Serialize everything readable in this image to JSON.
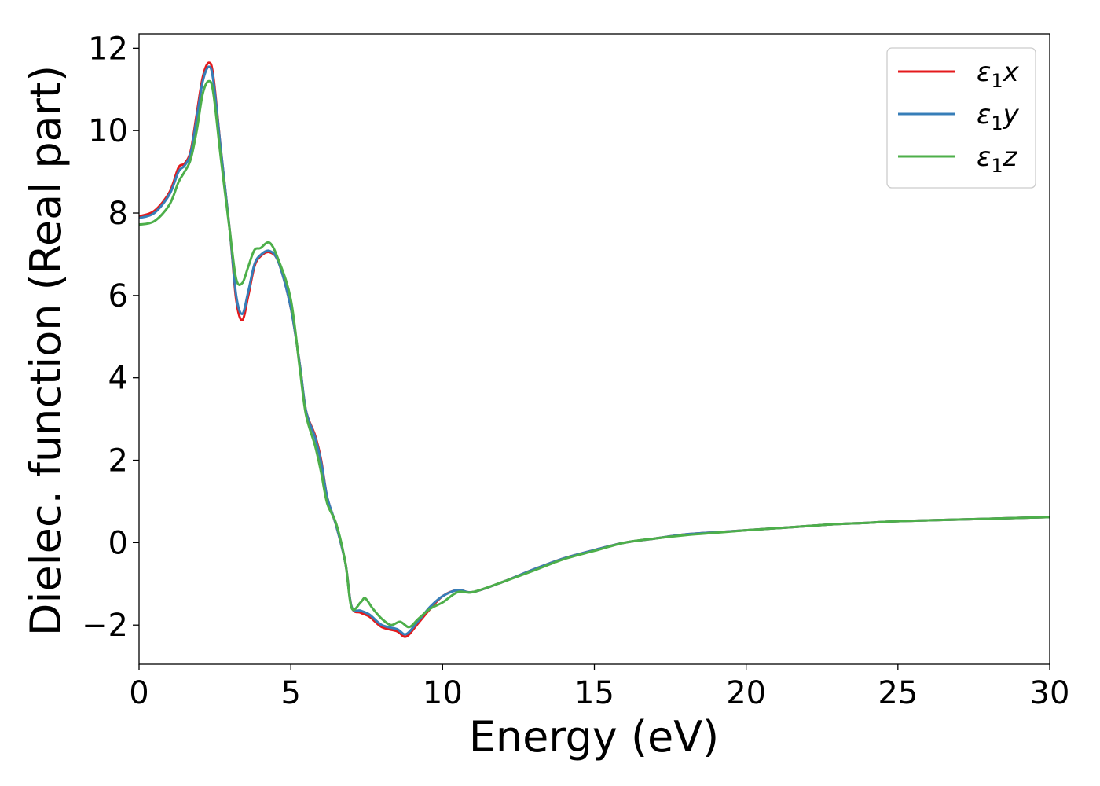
{
  "chart_data": {
    "type": "line",
    "title": "",
    "xlabel": "Energy (eV)",
    "ylabel": "Dielec. function (Real part)",
    "xlim": [
      0,
      30
    ],
    "ylim": [
      -2.95,
      12.35
    ],
    "xticks": [
      0,
      5,
      10,
      15,
      20,
      25,
      30
    ],
    "xtick_labels": [
      "0",
      "5",
      "10",
      "15",
      "20",
      "25",
      "30"
    ],
    "yticks": [
      -2,
      0,
      2,
      4,
      6,
      8,
      10,
      12
    ],
    "ytick_labels": [
      "−2",
      "0",
      "2",
      "4",
      "6",
      "8",
      "10",
      "12"
    ],
    "grid": false,
    "legend_position": "top-right",
    "series": [
      {
        "name": "ε₁x",
        "legend_base": "ε",
        "legend_sub": "1",
        "legend_var": "x",
        "color": "#e41a1c",
        "points": [
          [
            0,
            7.92
          ],
          [
            0.5,
            8.05
          ],
          [
            1.0,
            8.5
          ],
          [
            1.3,
            9.1
          ],
          [
            1.5,
            9.2
          ],
          [
            1.7,
            9.5
          ],
          [
            1.9,
            10.4
          ],
          [
            2.1,
            11.3
          ],
          [
            2.3,
            11.65
          ],
          [
            2.45,
            11.3
          ],
          [
            2.7,
            9.5
          ],
          [
            3.0,
            7.5
          ],
          [
            3.2,
            5.9
          ],
          [
            3.4,
            5.4
          ],
          [
            3.6,
            6.0
          ],
          [
            3.8,
            6.7
          ],
          [
            4.0,
            6.95
          ],
          [
            4.3,
            7.05
          ],
          [
            4.6,
            6.8
          ],
          [
            5.0,
            5.7
          ],
          [
            5.3,
            4.3
          ],
          [
            5.5,
            3.2
          ],
          [
            5.8,
            2.6
          ],
          [
            6.0,
            2.0
          ],
          [
            6.2,
            1.1
          ],
          [
            6.5,
            0.4
          ],
          [
            6.8,
            -0.5
          ],
          [
            7.0,
            -1.55
          ],
          [
            7.3,
            -1.7
          ],
          [
            7.6,
            -1.8
          ],
          [
            8.0,
            -2.05
          ],
          [
            8.5,
            -2.15
          ],
          [
            8.8,
            -2.28
          ],
          [
            9.2,
            -1.95
          ],
          [
            9.6,
            -1.6
          ],
          [
            10.0,
            -1.3
          ],
          [
            10.5,
            -1.15
          ],
          [
            11.0,
            -1.2
          ],
          [
            12.0,
            -0.95
          ],
          [
            13.0,
            -0.65
          ],
          [
            14.0,
            -0.38
          ],
          [
            15.0,
            -0.18
          ],
          [
            16.0,
            0.0
          ],
          [
            17.0,
            0.1
          ],
          [
            18.0,
            0.2
          ],
          [
            19.0,
            0.25
          ],
          [
            20.0,
            0.3
          ],
          [
            21.0,
            0.35
          ],
          [
            22.0,
            0.4
          ],
          [
            23.0,
            0.45
          ],
          [
            24.0,
            0.48
          ],
          [
            25.0,
            0.52
          ],
          [
            26.0,
            0.54
          ],
          [
            27.0,
            0.56
          ],
          [
            28.0,
            0.58
          ],
          [
            29.0,
            0.6
          ],
          [
            30.0,
            0.62
          ]
        ]
      },
      {
        "name": "ε₁y",
        "legend_base": "ε",
        "legend_sub": "1",
        "legend_var": "y",
        "color": "#377eb8",
        "points": [
          [
            0,
            7.88
          ],
          [
            0.5,
            8.0
          ],
          [
            1.0,
            8.45
          ],
          [
            1.3,
            9.0
          ],
          [
            1.5,
            9.15
          ],
          [
            1.7,
            9.45
          ],
          [
            1.9,
            10.3
          ],
          [
            2.1,
            11.2
          ],
          [
            2.3,
            11.55
          ],
          [
            2.45,
            11.2
          ],
          [
            2.7,
            9.5
          ],
          [
            3.0,
            7.5
          ],
          [
            3.2,
            6.0
          ],
          [
            3.4,
            5.55
          ],
          [
            3.6,
            6.1
          ],
          [
            3.8,
            6.75
          ],
          [
            4.0,
            6.98
          ],
          [
            4.3,
            7.08
          ],
          [
            4.6,
            6.8
          ],
          [
            5.0,
            5.7
          ],
          [
            5.3,
            4.3
          ],
          [
            5.5,
            3.2
          ],
          [
            5.8,
            2.55
          ],
          [
            6.0,
            1.95
          ],
          [
            6.2,
            1.1
          ],
          [
            6.5,
            0.4
          ],
          [
            6.8,
            -0.5
          ],
          [
            7.0,
            -1.55
          ],
          [
            7.3,
            -1.65
          ],
          [
            7.6,
            -1.75
          ],
          [
            8.0,
            -2.0
          ],
          [
            8.5,
            -2.1
          ],
          [
            8.8,
            -2.22
          ],
          [
            9.2,
            -1.9
          ],
          [
            9.6,
            -1.55
          ],
          [
            10.0,
            -1.3
          ],
          [
            10.5,
            -1.15
          ],
          [
            11.0,
            -1.2
          ],
          [
            12.0,
            -0.95
          ],
          [
            13.0,
            -0.65
          ],
          [
            14.0,
            -0.38
          ],
          [
            15.0,
            -0.18
          ],
          [
            16.0,
            0.0
          ],
          [
            17.0,
            0.1
          ],
          [
            18.0,
            0.2
          ],
          [
            19.0,
            0.25
          ],
          [
            20.0,
            0.3
          ],
          [
            21.0,
            0.35
          ],
          [
            22.0,
            0.4
          ],
          [
            23.0,
            0.45
          ],
          [
            24.0,
            0.48
          ],
          [
            25.0,
            0.52
          ],
          [
            26.0,
            0.54
          ],
          [
            27.0,
            0.56
          ],
          [
            28.0,
            0.58
          ],
          [
            29.0,
            0.6
          ],
          [
            30.0,
            0.62
          ]
        ]
      },
      {
        "name": "ε₁z",
        "legend_base": "ε",
        "legend_sub": "1",
        "legend_var": "z",
        "color": "#4daf4a",
        "points": [
          [
            0,
            7.72
          ],
          [
            0.5,
            7.8
          ],
          [
            1.0,
            8.2
          ],
          [
            1.3,
            8.75
          ],
          [
            1.5,
            9.0
          ],
          [
            1.7,
            9.3
          ],
          [
            1.9,
            10.0
          ],
          [
            2.1,
            10.9
          ],
          [
            2.3,
            11.2
          ],
          [
            2.45,
            10.9
          ],
          [
            2.7,
            9.3
          ],
          [
            3.0,
            7.5
          ],
          [
            3.2,
            6.4
          ],
          [
            3.4,
            6.3
          ],
          [
            3.6,
            6.7
          ],
          [
            3.8,
            7.1
          ],
          [
            4.0,
            7.15
          ],
          [
            4.3,
            7.28
          ],
          [
            4.6,
            6.85
          ],
          [
            5.0,
            5.9
          ],
          [
            5.3,
            4.2
          ],
          [
            5.5,
            3.1
          ],
          [
            5.8,
            2.35
          ],
          [
            6.0,
            1.7
          ],
          [
            6.2,
            0.95
          ],
          [
            6.5,
            0.45
          ],
          [
            6.8,
            -0.5
          ],
          [
            7.0,
            -1.58
          ],
          [
            7.3,
            -1.45
          ],
          [
            7.45,
            -1.35
          ],
          [
            7.7,
            -1.6
          ],
          [
            8.0,
            -1.85
          ],
          [
            8.3,
            -2.0
          ],
          [
            8.6,
            -1.92
          ],
          [
            8.9,
            -2.05
          ],
          [
            9.2,
            -1.85
          ],
          [
            9.6,
            -1.6
          ],
          [
            10.0,
            -1.45
          ],
          [
            10.5,
            -1.2
          ],
          [
            11.0,
            -1.2
          ],
          [
            12.0,
            -0.95
          ],
          [
            13.0,
            -0.68
          ],
          [
            14.0,
            -0.4
          ],
          [
            15.0,
            -0.2
          ],
          [
            16.0,
            0.0
          ],
          [
            17.0,
            0.1
          ],
          [
            18.0,
            0.18
          ],
          [
            19.0,
            0.24
          ],
          [
            20.0,
            0.3
          ],
          [
            21.0,
            0.35
          ],
          [
            22.0,
            0.4
          ],
          [
            23.0,
            0.45
          ],
          [
            24.0,
            0.48
          ],
          [
            25.0,
            0.52
          ],
          [
            26.0,
            0.54
          ],
          [
            27.0,
            0.56
          ],
          [
            28.0,
            0.58
          ],
          [
            29.0,
            0.6
          ],
          [
            30.0,
            0.62
          ]
        ]
      }
    ]
  }
}
